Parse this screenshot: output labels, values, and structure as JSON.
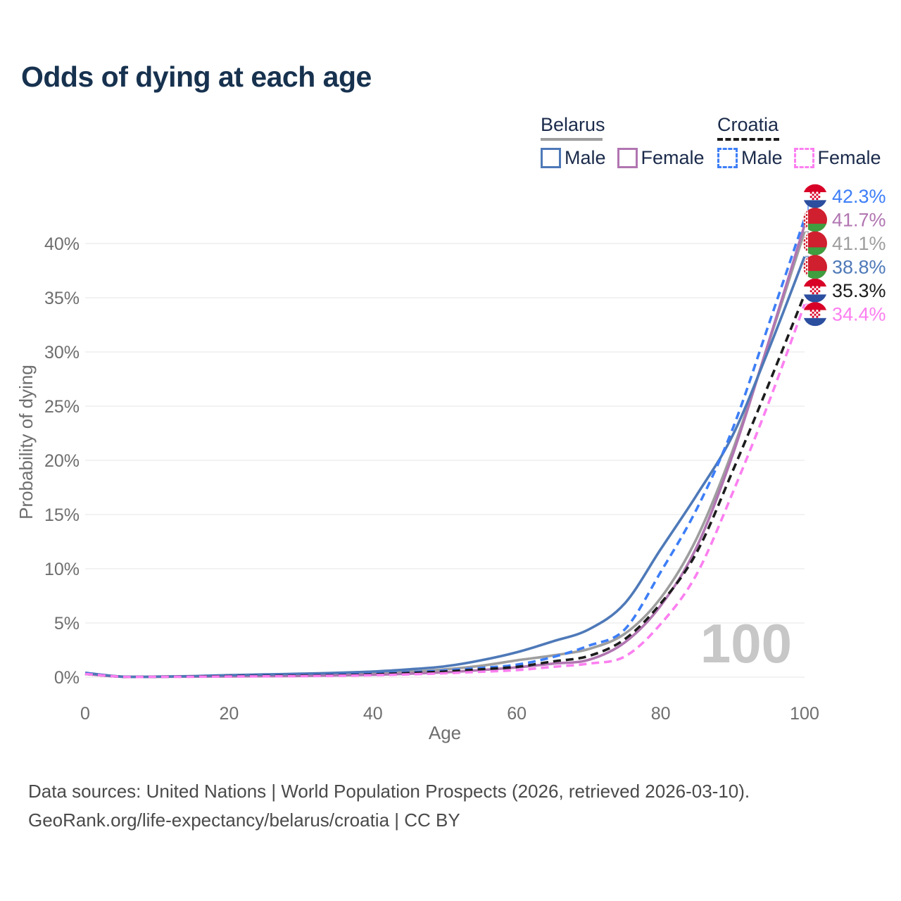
{
  "title": "Odds of dying at each age",
  "legend": {
    "groups": [
      {
        "label": "Belarus",
        "line_color": "#9E9E9E",
        "dash": false,
        "items": [
          {
            "label": "Male",
            "color": "#4E79B8"
          },
          {
            "label": "Female",
            "color": "#B175B1"
          }
        ]
      },
      {
        "label": "Croatia",
        "line_color": "#1C1C1C",
        "dash": true,
        "items": [
          {
            "label": "Male",
            "color": "#3D7EF7"
          },
          {
            "label": "Female",
            "color": "#FB7FF0"
          }
        ]
      }
    ]
  },
  "footer": {
    "line1": "Data sources: United Nations | World Population Prospects (2026, retrieved 2026-03-10).",
    "line2": "GeoRank.org/life-expectancy/belarus/croatia | CC BY"
  },
  "chart_data": {
    "type": "line",
    "title": "Odds of dying at each age",
    "xlabel": "Age",
    "ylabel": "Probability of dying",
    "xlim": [
      0,
      100
    ],
    "ylim": [
      0,
      44
    ],
    "xticks": [
      0,
      20,
      40,
      60,
      80,
      100
    ],
    "yticks": [
      0,
      5,
      10,
      15,
      20,
      25,
      30,
      35,
      40
    ],
    "ytick_suffix": "%",
    "grid": true,
    "watermark": "100",
    "legend_position": "top-right",
    "x": [
      0,
      5,
      10,
      15,
      20,
      25,
      30,
      35,
      40,
      45,
      50,
      55,
      60,
      65,
      70,
      75,
      80,
      85,
      90,
      95,
      100
    ],
    "series": [
      {
        "name": "Croatia Male",
        "slug": "croatia-male",
        "flag": "croatia",
        "color": "#3D7EF7",
        "dash": true,
        "end_label": "42.3%",
        "values": [
          0.35,
          0.05,
          0.04,
          0.07,
          0.12,
          0.15,
          0.18,
          0.25,
          0.33,
          0.45,
          0.62,
          0.85,
          1.15,
          1.85,
          2.9,
          4.4,
          9.7,
          15.5,
          22.9,
          32.5,
          42.3
        ]
      },
      {
        "name": "Belarus Female",
        "slug": "belarus-female",
        "flag": "belarus",
        "color": "#B175B1",
        "dash": false,
        "end_label": "41.7%",
        "values": [
          0.3,
          0.04,
          0.03,
          0.05,
          0.07,
          0.09,
          0.12,
          0.16,
          0.22,
          0.32,
          0.45,
          0.65,
          0.9,
          1.25,
          1.6,
          3.2,
          6.6,
          12.0,
          20.5,
          30.9,
          41.7
        ]
      },
      {
        "name": "Belarus Both sexes",
        "slug": "belarus-both-sexes",
        "flag": "belarus",
        "color": "#9E9E9E",
        "dash": false,
        "end_label": "41.1%",
        "values": [
          0.35,
          0.05,
          0.04,
          0.08,
          0.13,
          0.17,
          0.22,
          0.28,
          0.37,
          0.5,
          0.72,
          1.05,
          1.55,
          2.0,
          2.6,
          4.0,
          7.3,
          12.8,
          20.9,
          30.8,
          41.1
        ]
      },
      {
        "name": "Belarus Male",
        "slug": "belarus-male",
        "flag": "belarus",
        "color": "#4E79B8",
        "dash": false,
        "end_label": "38.8%",
        "values": [
          0.4,
          0.05,
          0.05,
          0.1,
          0.18,
          0.25,
          0.32,
          0.4,
          0.52,
          0.72,
          1.0,
          1.55,
          2.3,
          3.3,
          4.4,
          6.8,
          11.8,
          16.8,
          22.3,
          30.2,
          38.8
        ]
      },
      {
        "name": "Croatia Both sexes",
        "slug": "croatia-both-sexes",
        "flag": "croatia",
        "color": "#1C1C1C",
        "dash": true,
        "end_label": "35.3%",
        "values": [
          0.3,
          0.04,
          0.04,
          0.06,
          0.1,
          0.12,
          0.15,
          0.19,
          0.26,
          0.38,
          0.52,
          0.72,
          0.95,
          1.45,
          1.95,
          3.5,
          6.8,
          11.5,
          19.0,
          27.0,
          35.3
        ]
      },
      {
        "name": "Croatia Female",
        "slug": "croatia-female",
        "flag": "croatia",
        "color": "#FB7FF0",
        "dash": true,
        "end_label": "34.4%",
        "values": [
          0.3,
          0.04,
          0.03,
          0.04,
          0.06,
          0.08,
          0.1,
          0.13,
          0.18,
          0.26,
          0.36,
          0.5,
          0.65,
          0.95,
          1.25,
          1.9,
          4.9,
          9.5,
          17.0,
          25.3,
          34.4
        ]
      }
    ]
  }
}
